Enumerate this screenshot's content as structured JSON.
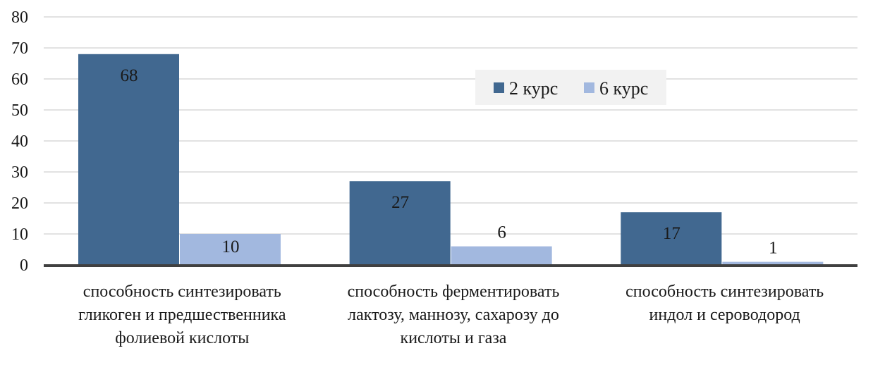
{
  "chart_data": {
    "type": "bar",
    "categories": [
      [
        "способность синтезировать",
        "гликоген и предшественника",
        "фолиевой кислоты"
      ],
      [
        "способность ферментировать",
        "лактозу, маннозу, сахарозу до",
        "кислоты и газа"
      ],
      [
        "способность синтезировать",
        "индол и сероводород"
      ]
    ],
    "series": [
      {
        "name": "2 курс",
        "values": [
          68,
          27,
          17
        ],
        "color": "#416890"
      },
      {
        "name": "6 курс",
        "values": [
          10,
          6,
          1
        ],
        "color": "#a2b8df"
      }
    ],
    "ylim": [
      0,
      80
    ],
    "yticks": [
      "0",
      "10",
      "20",
      "30",
      "40",
      "50",
      "60",
      "70",
      "80"
    ],
    "grid": true,
    "legend_position": "top-center",
    "gridline_color": "#d9d9d9",
    "axis_color": "#404040"
  }
}
